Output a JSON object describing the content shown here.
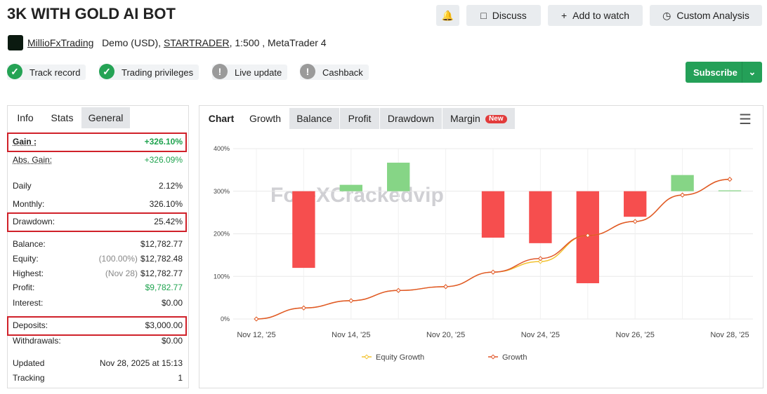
{
  "header": {
    "title": "3K WITH GOLD AI BOT",
    "buttons": [
      "Discuss",
      "Add to watch",
      "Custom Analysis"
    ]
  },
  "account": {
    "name": "MillioFxTrading",
    "type": "Demo (USD),",
    "broker": "STARTRADER",
    "details": ", 1:500 , MetaTrader 4"
  },
  "badges": [
    {
      "label": "Track record",
      "checked": true
    },
    {
      "label": "Trading privileges",
      "checked": true
    },
    {
      "label": "Live update",
      "checked": false
    },
    {
      "label": "Cashback",
      "checked": false
    }
  ],
  "subscribe": "Subscribe",
  "info_tabs": [
    "Info",
    "Stats",
    "General"
  ],
  "stats": [
    {
      "label": "Gain :",
      "value": "+326.10%",
      "highlight": true,
      "positive": true
    },
    {
      "label": "Abs. Gain:",
      "value": "+326.09%",
      "positive": true
    },
    {
      "label": "Daily",
      "value": "2.12%"
    },
    {
      "label": "Monthly:",
      "value": "326.10%"
    },
    {
      "label": "Drawdown:",
      "value": "25.42%",
      "highlight": true
    },
    {
      "label": "Balance:",
      "value": "$12,782.77"
    },
    {
      "label": "Equity:",
      "note": "(100.00%)",
      "value": "$12,782.48"
    },
    {
      "label": "Highest:",
      "note": "(Nov 28)",
      "value": "$12,782.77"
    },
    {
      "label": "Profit:",
      "value": "$9,782.77",
      "positive": true
    },
    {
      "label": "Interest:",
      "value": "$0.00"
    },
    {
      "label": "Deposits:",
      "value": "$3,000.00",
      "highlight": true
    },
    {
      "label": "Withdrawals:",
      "value": "$0.00"
    },
    {
      "label": "Updated",
      "value": "Nov 28, 2025 at 15:13"
    },
    {
      "label": "Tracking",
      "value": "1"
    }
  ],
  "chart_tabs": [
    "Chart",
    "Growth",
    "Balance",
    "Profit",
    "Drawdown",
    "Margin"
  ],
  "new_badge": "New",
  "watermark": "ForeXCrackedvip",
  "chart_data": {
    "type": "line",
    "categories": [
      "Nov 12, '25",
      null,
      "Nov 14, '25",
      null,
      "Nov 20, '25",
      null,
      "Nov 24, '25",
      null,
      "Nov 26, '25",
      null,
      "Nov 28, '25"
    ],
    "series": [
      {
        "name": "Equity Growth",
        "color": "#f2c230",
        "values": [
          0,
          26,
          43,
          67,
          76,
          110,
          135,
          196,
          229,
          291,
          328
        ]
      },
      {
        "name": "Growth",
        "color": "#e0572b",
        "values": [
          0,
          26,
          43,
          67,
          76,
          110,
          142,
          196,
          229,
          291,
          328
        ]
      },
      {
        "type": "bar",
        "axis": "y2",
        "values": [
          null,
          -180,
          15,
          67,
          null,
          -109,
          -122,
          -216,
          -60,
          38,
          2
        ]
      }
    ],
    "ylim": [
      0,
      400
    ],
    "yticks": [
      {
        "value": 0,
        "label": "0%"
      },
      {
        "value": 100,
        "label": "100%"
      },
      {
        "value": 200,
        "label": "200%"
      },
      {
        "value": 300,
        "label": "300%"
      },
      {
        "value": 400,
        "label": "400%"
      }
    ],
    "y2lim": [
      -300,
      100
    ],
    "bar_colors": {
      "positive": "#86d586",
      "negative": "#f64e4e"
    },
    "grid": true,
    "legend": "bottom"
  }
}
